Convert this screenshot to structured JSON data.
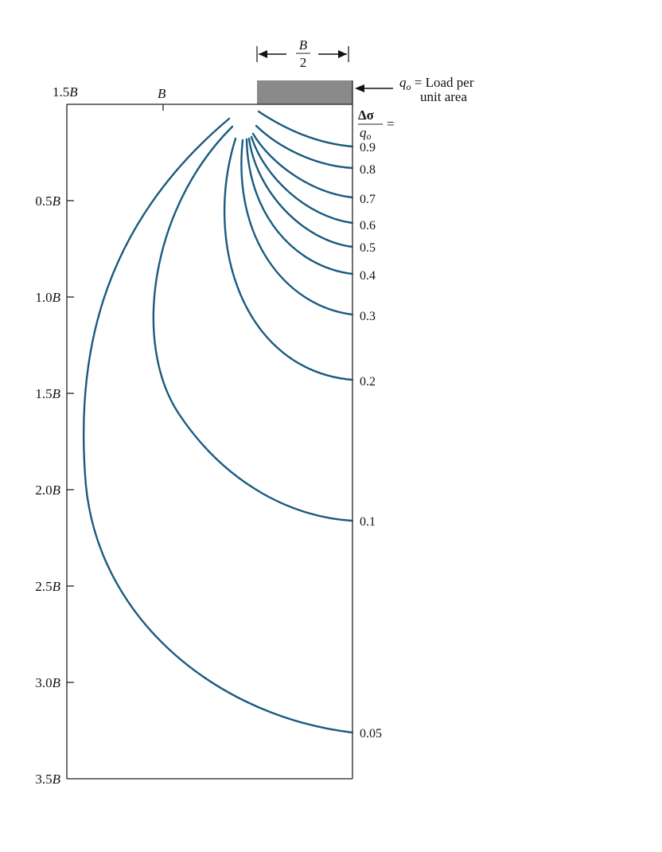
{
  "footing": {
    "width_top_label": "B",
    "width_bottom_label": "2",
    "load_line1_sym": "q",
    "load_line1_sub": "o",
    "load_line1_rest": " = Load per",
    "load_line2": "unit area",
    "fill_color": "#8a8a8a"
  },
  "ratio_header": {
    "numerator": "Δσ",
    "denominator_sym": "q",
    "denominator_sub": "o",
    "equals": "="
  },
  "top_axis": {
    "labels": [
      {
        "num": "1.5",
        "unit": "B"
      },
      {
        "num": "",
        "unit": "B"
      }
    ]
  },
  "depth_axis": {
    "labels": [
      {
        "num": "0.5",
        "unit": "B"
      },
      {
        "num": "1.0",
        "unit": "B"
      },
      {
        "num": "1.5",
        "unit": "B"
      },
      {
        "num": "2.0",
        "unit": "B"
      },
      {
        "num": "2.5",
        "unit": "B"
      },
      {
        "num": "3.0",
        "unit": "B"
      },
      {
        "num": "3.5",
        "unit": "B"
      }
    ]
  },
  "isobars": [
    {
      "value": "0.9"
    },
    {
      "value": "0.8"
    },
    {
      "value": "0.7"
    },
    {
      "value": "0.6"
    },
    {
      "value": "0.5"
    },
    {
      "value": "0.4"
    },
    {
      "value": "0.3"
    },
    {
      "value": "0.2"
    },
    {
      "value": "0.1"
    },
    {
      "value": "0.05"
    }
  ],
  "colors": {
    "curve": "#1a5a80",
    "frame": "#222222"
  }
}
